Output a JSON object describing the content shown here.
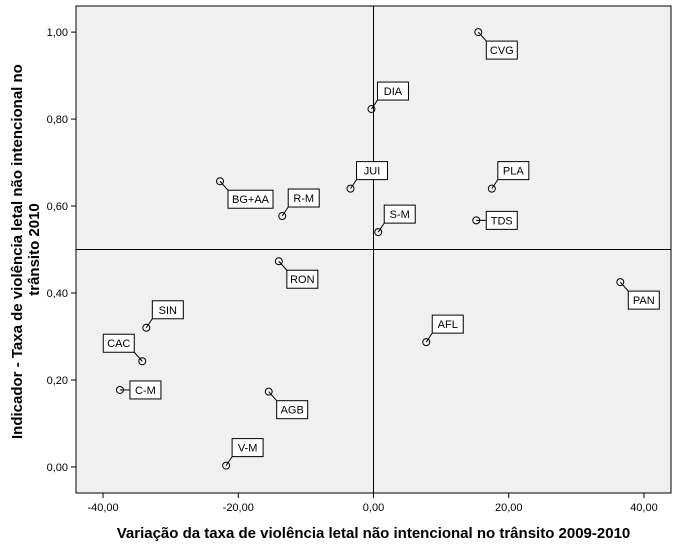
{
  "chart_data": {
    "type": "scatter",
    "title": "",
    "xlabel": "Variação da taxa de violência letal não intencional no trânsito 2009-2010",
    "ylabel_lines": [
      "Indicador - Taxa de violência letal não intencional no",
      "trânsito 2010"
    ],
    "xlim": [
      -44,
      44
    ],
    "ylim": [
      -0.06,
      1.06
    ],
    "x_ticks": [
      -40,
      -20,
      0,
      20,
      40
    ],
    "x_tick_labels": [
      "-40,00",
      "-20,00",
      "0,00",
      "20,00",
      "40,00"
    ],
    "y_ticks": [
      0,
      0.2,
      0.4,
      0.6,
      0.8,
      1.0
    ],
    "y_tick_labels": [
      "0,00",
      "0,20",
      "0,40",
      "0,60",
      "0,80",
      "1,00"
    ],
    "reference_lines": {
      "x": 0,
      "y": 0.5
    },
    "grid": false,
    "plot_background": "#f0f0f0",
    "points": [
      {
        "label": "CVG",
        "x": 15.5,
        "y": 1.0,
        "label_pos": "below-right"
      },
      {
        "label": "DIA",
        "x": -0.3,
        "y": 0.823,
        "label_pos": "above-right"
      },
      {
        "label": "PLA",
        "x": 17.5,
        "y": 0.64,
        "label_pos": "above-right"
      },
      {
        "label": "BG+AA",
        "x": -22.7,
        "y": 0.657,
        "label_pos": "below-right"
      },
      {
        "label": "R-M",
        "x": -13.5,
        "y": 0.577,
        "label_pos": "above-right"
      },
      {
        "label": "JUI",
        "x": -3.4,
        "y": 0.64,
        "label_pos": "above-right"
      },
      {
        "label": "S-M",
        "x": 0.7,
        "y": 0.54,
        "label_pos": "above-right"
      },
      {
        "label": "TDS",
        "x": 15.2,
        "y": 0.567,
        "label_pos": "right"
      },
      {
        "label": "RON",
        "x": -14.0,
        "y": 0.473,
        "label_pos": "below-right"
      },
      {
        "label": "PAN",
        "x": 36.5,
        "y": 0.425,
        "label_pos": "below-right"
      },
      {
        "label": "SIN",
        "x": -33.6,
        "y": 0.32,
        "label_pos": "above-right"
      },
      {
        "label": "AFL",
        "x": 7.8,
        "y": 0.287,
        "label_pos": "above-right"
      },
      {
        "label": "CAC",
        "x": -34.2,
        "y": 0.243,
        "label_pos": "above-left"
      },
      {
        "label": "C-M",
        "x": -37.5,
        "y": 0.177,
        "label_pos": "right"
      },
      {
        "label": "AGB",
        "x": -15.5,
        "y": 0.173,
        "label_pos": "below-right"
      },
      {
        "label": "V-M",
        "x": -21.8,
        "y": 0.003,
        "label_pos": "above-right"
      }
    ]
  }
}
